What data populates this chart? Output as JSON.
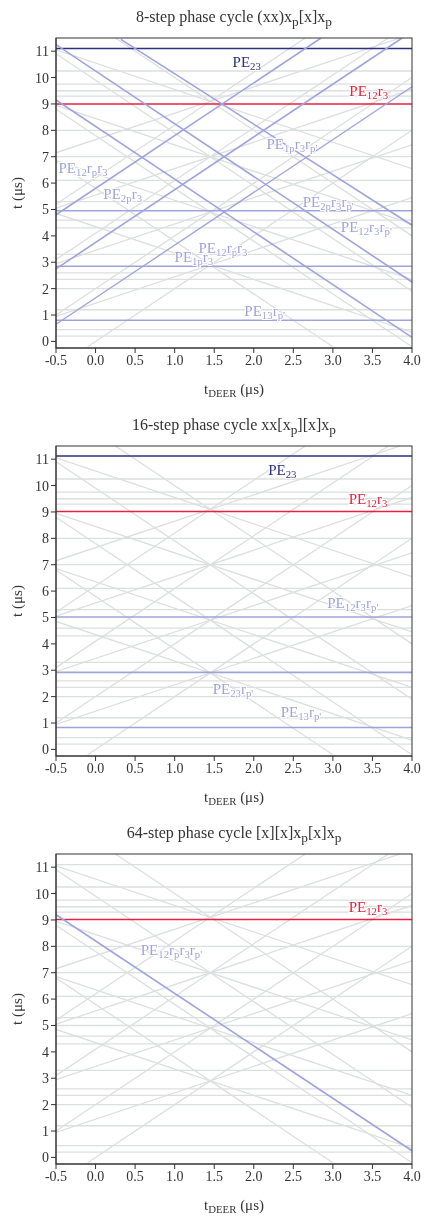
{
  "chart_data": [
    {
      "type": "line",
      "title": "8-step phase cycle (xx)x$_{p}$[x]x$_{p}$",
      "xlabel": "t$_{DEER}$ (μs)",
      "ylabel": "t (μs)",
      "xlim": [
        -0.5,
        4
      ],
      "ylim": [
        -0.25,
        11.5
      ],
      "xticks": [
        -0.5,
        {
          "value": 0,
          "label": "0.0"
        },
        0.5,
        {
          "value": 1,
          "label": "1.0"
        },
        1.5,
        {
          "value": 2,
          "label": "2.0"
        },
        2.5,
        {
          "value": 3,
          "label": "3.0"
        },
        3.5,
        {
          "value": 4,
          "label": "4.0"
        }
      ],
      "yticks": [
        0,
        1,
        2,
        3,
        4,
        5,
        6,
        7,
        8,
        9,
        10,
        11
      ],
      "series": [
        {
          "color": "#dcdfdf",
          "x": [
            -0.5,
            4
          ],
          "values": [
            0.2,
            0.2
          ]
        },
        {
          "color": "#dcdfdf",
          "x": [
            -0.5,
            4
          ],
          "values": [
            0.45,
            0.45
          ]
        },
        {
          "color": "#dcdfdf",
          "x": [
            -0.5,
            4
          ],
          "values": [
            1.2,
            1.2
          ]
        },
        {
          "color": "#dcdfdf",
          "x": [
            -0.5,
            4
          ],
          "values": [
            2.0,
            2.0
          ]
        },
        {
          "color": "#dcdfdf",
          "x": [
            -0.5,
            4
          ],
          "values": [
            2.35,
            2.35
          ]
        },
        {
          "color": "#dcdfdf",
          "x": [
            -0.5,
            4
          ],
          "values": [
            2.6,
            2.6
          ]
        },
        {
          "color": "#dcdfdf",
          "x": [
            -0.5,
            4
          ],
          "values": [
            3.3,
            3.3
          ]
        },
        {
          "color": "#dcdfdf",
          "x": [
            -0.5,
            4
          ],
          "values": [
            4.3,
            4.3
          ]
        },
        {
          "color": "#dcdfdf",
          "x": [
            -0.5,
            4
          ],
          "values": [
            4.6,
            4.6
          ]
        },
        {
          "color": "#dcdfdf",
          "x": [
            -0.5,
            4
          ],
          "values": [
            5.3,
            5.3
          ]
        },
        {
          "color": "#dcdfdf",
          "x": [
            -0.5,
            4
          ],
          "values": [
            6.1,
            6.1
          ]
        },
        {
          "color": "#dcdfdf",
          "x": [
            -0.5,
            4
          ],
          "values": [
            7.0,
            7.0
          ]
        },
        {
          "color": "#dcdfdf",
          "x": [
            -0.5,
            4
          ],
          "values": [
            8.0,
            8.0
          ]
        },
        {
          "color": "#dcdfdf",
          "x": [
            -0.5,
            4
          ],
          "values": [
            9.3,
            9.3
          ]
        },
        {
          "color": "#dcdfdf",
          "x": [
            -0.5,
            4
          ],
          "values": [
            9.5,
            9.5
          ]
        },
        {
          "color": "#dcdfdf",
          "x": [
            -0.5,
            4
          ],
          "values": [
            9.75,
            9.75
          ]
        },
        {
          "color": "#dcdfdf",
          "x": [
            -0.5,
            4
          ],
          "values": [
            10.25,
            10.25
          ]
        },
        {
          "color": "#dcdfdf",
          "x": [
            -0.5,
            3.85
          ],
          "values": [
            7.15,
            11.5
          ]
        },
        {
          "color": "#dcdfdf",
          "x": [
            -0.5,
            4
          ],
          "values": [
            11.05,
            6.55
          ]
        },
        {
          "color": "#dcdfdf",
          "x": [
            -0.5,
            4
          ],
          "values": [
            5.05,
            9.55
          ]
        },
        {
          "color": "#dcdfdf",
          "x": [
            -0.5,
            4
          ],
          "values": [
            8.95,
            4.45
          ]
        },
        {
          "color": "#dcdfdf",
          "x": [
            -0.5,
            4
          ],
          "values": [
            2.95,
            7.45
          ]
        },
        {
          "color": "#dcdfdf",
          "x": [
            -0.5,
            4
          ],
          "values": [
            6.85,
            2.35
          ]
        },
        {
          "color": "#dcdfdf",
          "x": [
            -0.5,
            4
          ],
          "values": [
            0.95,
            5.45
          ]
        },
        {
          "color": "#dcdfdf",
          "x": [
            -0.5,
            4
          ],
          "values": [
            4.85,
            0.35
          ]
        },
        {
          "color": "#dcdfdf",
          "x": [
            -0.5,
            2.65
          ],
          "values": [
            5.2,
            11.5
          ]
        },
        {
          "color": "#dcdfdf",
          "x": [
            0.25,
            4
          ],
          "values": [
            11.5,
            4.0
          ]
        },
        {
          "color": "#dcdfdf",
          "x": [
            -0.5,
            3.7
          ],
          "values": [
            3.1,
            11.5
          ]
        },
        {
          "color": "#dcdfdf",
          "x": [
            -0.5,
            4
          ],
          "values": [
            10.9,
            1.9
          ]
        },
        {
          "color": "#dcdfdf",
          "x": [
            -0.5,
            4
          ],
          "values": [
            1.0,
            10.0
          ]
        },
        {
          "color": "#dcdfdf",
          "x": [
            -0.5,
            4
          ],
          "values": [
            8.8,
            -0.2
          ]
        },
        {
          "color": "#dcdfdf",
          "x": [
            -0.1,
            4
          ],
          "values": [
            -0.2,
            8.0
          ]
        },
        {
          "color": "#dcdfdf",
          "x": [
            -0.5,
            3.0
          ],
          "values": [
            6.8,
            -0.2
          ]
        },
        {
          "name": "PE$_{23}$",
          "color": "#2e3180",
          "x": [
            -0.5,
            4
          ],
          "values": [
            11.1,
            11.1
          ]
        },
        {
          "name": "PE$_{12}$r$_{3}$",
          "color": "#e8213f",
          "x": [
            -0.5,
            4
          ],
          "values": [
            9.0,
            9.0
          ]
        },
        {
          "name": "PE$_{2p}$r$_{3}$r$_{p'}$",
          "color": "#9fa3dc",
          "x": [
            -0.5,
            4
          ],
          "values": [
            4.95,
            4.95
          ]
        },
        {
          "name": "PE$_{1p}$r$_{3}$",
          "color": "#9fa3dc",
          "x": [
            -0.5,
            4
          ],
          "values": [
            2.85,
            2.85
          ]
        },
        {
          "name": "PE$_{13}$r$_{p'}$",
          "color": "#9fa3dc",
          "x": [
            -0.5,
            4
          ],
          "values": [
            0.8,
            0.8
          ]
        },
        {
          "name": "PE$_{12}$r$_{3}$r$_{p'}$",
          "color": "#9fa3dc",
          "x": [
            -0.5,
            4
          ],
          "values": [
            11.25,
            2.25
          ]
        },
        {
          "name": "PE$_{12}$r$_{p}$r$_{3}$",
          "color": "#9fa3dc",
          "x": [
            -0.5,
            4
          ],
          "values": [
            9.15,
            0.15
          ]
        },
        {
          "name": "PE$_{12}$r$_{p}$r$_{3}$",
          "color": "#9fa3dc",
          "x": [
            -0.5,
            2.85
          ],
          "values": [
            4.8,
            11.5
          ]
        },
        {
          "name": "PE$_{2p}$r$_{3}$",
          "color": "#9fa3dc",
          "x": [
            -0.5,
            3.875
          ],
          "values": [
            2.75,
            11.5
          ]
        },
        {
          "color": "#9fa3dc",
          "x": [
            -0.5,
            4
          ],
          "values": [
            0.65,
            9.65
          ]
        },
        {
          "name": "PE$_{1p}$r$_{3}$r$_{p'}$",
          "color": "#9fa3dc",
          "x": [
            0.32,
            4
          ],
          "values": [
            11.45,
            4.4
          ]
        }
      ]
    },
    {
      "type": "line",
      "title": "16-step phase cycle xx[x$_{p}$][x]x$_{p}$",
      "xlabel": "t$_{DEER}$ (μs)",
      "ylabel": "t (μs)",
      "xlim": [
        -0.5,
        4
      ],
      "ylim": [
        -0.25,
        11.5
      ],
      "xticks": [
        -0.5,
        {
          "value": 0,
          "label": "0.0"
        },
        0.5,
        {
          "value": 1,
          "label": "1.0"
        },
        1.5,
        {
          "value": 2,
          "label": "2.0"
        },
        2.5,
        {
          "value": 3,
          "label": "3.0"
        },
        3.5,
        {
          "value": 4,
          "label": "4.0"
        }
      ],
      "yticks": [
        0,
        1,
        2,
        3,
        4,
        5,
        6,
        7,
        8,
        9,
        10,
        11
      ],
      "series": [
        {
          "color": "#dcdfdf",
          "x": [
            -0.5,
            4
          ],
          "values": [
            0.2,
            0.2
          ]
        },
        {
          "color": "#dcdfdf",
          "x": [
            -0.5,
            4
          ],
          "values": [
            0.45,
            0.45
          ]
        },
        {
          "color": "#dcdfdf",
          "x": [
            -0.5,
            4
          ],
          "values": [
            1.2,
            1.2
          ]
        },
        {
          "color": "#dcdfdf",
          "x": [
            -0.5,
            4
          ],
          "values": [
            2.0,
            2.0
          ]
        },
        {
          "color": "#dcdfdf",
          "x": [
            -0.5,
            4
          ],
          "values": [
            2.35,
            2.35
          ]
        },
        {
          "color": "#dcdfdf",
          "x": [
            -0.5,
            4
          ],
          "values": [
            2.6,
            2.6
          ]
        },
        {
          "color": "#dcdfdf",
          "x": [
            -0.5,
            4
          ],
          "values": [
            3.3,
            3.3
          ]
        },
        {
          "color": "#dcdfdf",
          "x": [
            -0.5,
            4
          ],
          "values": [
            4.3,
            4.3
          ]
        },
        {
          "color": "#dcdfdf",
          "x": [
            -0.5,
            4
          ],
          "values": [
            4.6,
            4.6
          ]
        },
        {
          "color": "#dcdfdf",
          "x": [
            -0.5,
            4
          ],
          "values": [
            5.3,
            5.3
          ]
        },
        {
          "color": "#dcdfdf",
          "x": [
            -0.5,
            4
          ],
          "values": [
            6.1,
            6.1
          ]
        },
        {
          "color": "#dcdfdf",
          "x": [
            -0.5,
            4
          ],
          "values": [
            7.0,
            7.0
          ]
        },
        {
          "color": "#dcdfdf",
          "x": [
            -0.5,
            4
          ],
          "values": [
            8.0,
            8.0
          ]
        },
        {
          "color": "#dcdfdf",
          "x": [
            -0.5,
            4
          ],
          "values": [
            9.3,
            9.3
          ]
        },
        {
          "color": "#dcdfdf",
          "x": [
            -0.5,
            4
          ],
          "values": [
            9.5,
            9.5
          ]
        },
        {
          "color": "#dcdfdf",
          "x": [
            -0.5,
            4
          ],
          "values": [
            9.75,
            9.75
          ]
        },
        {
          "color": "#dcdfdf",
          "x": [
            -0.5,
            4
          ],
          "values": [
            10.25,
            10.25
          ]
        },
        {
          "color": "#dcdfdf",
          "x": [
            -0.5,
            3.85
          ],
          "values": [
            7.15,
            11.5
          ]
        },
        {
          "color": "#dcdfdf",
          "x": [
            -0.5,
            4
          ],
          "values": [
            11.05,
            6.55
          ]
        },
        {
          "color": "#dcdfdf",
          "x": [
            -0.5,
            4
          ],
          "values": [
            5.05,
            9.55
          ]
        },
        {
          "color": "#dcdfdf",
          "x": [
            -0.5,
            4
          ],
          "values": [
            8.95,
            4.45
          ]
        },
        {
          "color": "#dcdfdf",
          "x": [
            -0.5,
            4
          ],
          "values": [
            2.95,
            7.45
          ]
        },
        {
          "color": "#dcdfdf",
          "x": [
            -0.5,
            4
          ],
          "values": [
            6.85,
            2.35
          ]
        },
        {
          "color": "#dcdfdf",
          "x": [
            -0.5,
            4
          ],
          "values": [
            0.95,
            5.45
          ]
        },
        {
          "color": "#dcdfdf",
          "x": [
            -0.5,
            4
          ],
          "values": [
            4.85,
            0.35
          ]
        },
        {
          "color": "#dcdfdf",
          "x": [
            -0.5,
            2.65
          ],
          "values": [
            5.2,
            11.5
          ]
        },
        {
          "color": "#dcdfdf",
          "x": [
            0.25,
            4
          ],
          "values": [
            11.5,
            4.0
          ]
        },
        {
          "color": "#dcdfdf",
          "x": [
            -0.5,
            3.7
          ],
          "values": [
            3.1,
            11.5
          ]
        },
        {
          "color": "#dcdfdf",
          "x": [
            -0.5,
            4
          ],
          "values": [
            10.9,
            1.9
          ]
        },
        {
          "color": "#dcdfdf",
          "x": [
            -0.5,
            4
          ],
          "values": [
            1.0,
            10.0
          ]
        },
        {
          "color": "#dcdfdf",
          "x": [
            -0.5,
            4
          ],
          "values": [
            8.8,
            -0.2
          ]
        },
        {
          "color": "#dcdfdf",
          "x": [
            -0.1,
            4
          ],
          "values": [
            -0.2,
            8.0
          ]
        },
        {
          "color": "#dcdfdf",
          "x": [
            -0.5,
            3.0
          ],
          "values": [
            6.8,
            -0.2
          ]
        },
        {
          "name": "PE$_{23}$",
          "color": "#2e3180",
          "x": [
            -0.5,
            4
          ],
          "values": [
            11.12,
            11.12
          ]
        },
        {
          "name": "PE$_{12}$r$_{3}$",
          "color": "#e8213f",
          "x": [
            -0.5,
            4
          ],
          "values": [
            9.02,
            9.02
          ]
        },
        {
          "name": "PE$_{12}$r$_{3}$r$_{p'}$",
          "color": "#9fa3dc",
          "x": [
            -0.5,
            4
          ],
          "values": [
            5.02,
            5.02
          ]
        },
        {
          "name": "PE$_{23}$r$_{p'}$",
          "color": "#9fa3dc",
          "x": [
            -0.5,
            4
          ],
          "values": [
            2.92,
            2.92
          ]
        },
        {
          "name": "PE$_{13}$r$_{p'}$",
          "color": "#9fa3dc",
          "x": [
            -0.5,
            4
          ],
          "values": [
            0.83,
            0.83
          ]
        }
      ]
    },
    {
      "type": "line",
      "title": "64-step phase cycle [x][x]x$_{p}$[x]x$_{p}$",
      "xlabel": "t$_{DEER}$ (μs)",
      "ylabel": "t (μs)",
      "xlim": [
        -0.5,
        4
      ],
      "ylim": [
        -0.25,
        11.5
      ],
      "xticks": [
        -0.5,
        {
          "value": 0,
          "label": "0.0"
        },
        0.5,
        {
          "value": 1,
          "label": "1.0"
        },
        1.5,
        {
          "value": 2,
          "label": "2.0"
        },
        2.5,
        {
          "value": 3,
          "label": "3.0"
        },
        3.5,
        {
          "value": 4,
          "label": "4.0"
        }
      ],
      "yticks": [
        0,
        1,
        2,
        3,
        4,
        5,
        6,
        7,
        8,
        9,
        10,
        11
      ],
      "series": [
        {
          "color": "#dcdfdf",
          "x": [
            -0.5,
            4
          ],
          "values": [
            0.2,
            0.2
          ]
        },
        {
          "color": "#dcdfdf",
          "x": [
            -0.5,
            4
          ],
          "values": [
            0.45,
            0.45
          ]
        },
        {
          "color": "#dcdfdf",
          "x": [
            -0.5,
            4
          ],
          "values": [
            1.2,
            1.2
          ]
        },
        {
          "color": "#dcdfdf",
          "x": [
            -0.5,
            4
          ],
          "values": [
            2.0,
            2.0
          ]
        },
        {
          "color": "#dcdfdf",
          "x": [
            -0.5,
            4
          ],
          "values": [
            2.35,
            2.35
          ]
        },
        {
          "color": "#dcdfdf",
          "x": [
            -0.5,
            4
          ],
          "values": [
            2.6,
            2.6
          ]
        },
        {
          "color": "#dcdfdf",
          "x": [
            -0.5,
            4
          ],
          "values": [
            3.3,
            3.3
          ]
        },
        {
          "color": "#dcdfdf",
          "x": [
            -0.5,
            4
          ],
          "values": [
            4.3,
            4.3
          ]
        },
        {
          "color": "#dcdfdf",
          "x": [
            -0.5,
            4
          ],
          "values": [
            4.6,
            4.6
          ]
        },
        {
          "color": "#dcdfdf",
          "x": [
            -0.5,
            4
          ],
          "values": [
            5.0,
            5.0
          ]
        },
        {
          "color": "#dcdfdf",
          "x": [
            -0.5,
            4
          ],
          "values": [
            5.3,
            5.3
          ]
        },
        {
          "color": "#dcdfdf",
          "x": [
            -0.5,
            4
          ],
          "values": [
            6.1,
            6.1
          ]
        },
        {
          "color": "#dcdfdf",
          "x": [
            -0.5,
            4
          ],
          "values": [
            7.0,
            7.0
          ]
        },
        {
          "color": "#dcdfdf",
          "x": [
            -0.5,
            4
          ],
          "values": [
            8.0,
            8.0
          ]
        },
        {
          "color": "#dcdfdf",
          "x": [
            -0.5,
            4
          ],
          "values": [
            9.3,
            9.3
          ]
        },
        {
          "color": "#dcdfdf",
          "x": [
            -0.5,
            4
          ],
          "values": [
            9.5,
            9.5
          ]
        },
        {
          "color": "#dcdfdf",
          "x": [
            -0.5,
            4
          ],
          "values": [
            9.75,
            9.75
          ]
        },
        {
          "color": "#dcdfdf",
          "x": [
            -0.5,
            4
          ],
          "values": [
            10.25,
            10.25
          ]
        },
        {
          "color": "#dcdfdf",
          "x": [
            -0.5,
            4
          ],
          "values": [
            11.1,
            11.1
          ]
        },
        {
          "color": "#dcdfdf",
          "x": [
            -0.5,
            3.85
          ],
          "values": [
            7.15,
            11.5
          ]
        },
        {
          "color": "#dcdfdf",
          "x": [
            -0.5,
            4
          ],
          "values": [
            11.05,
            6.55
          ]
        },
        {
          "color": "#dcdfdf",
          "x": [
            -0.5,
            4
          ],
          "values": [
            5.05,
            9.55
          ]
        },
        {
          "color": "#dcdfdf",
          "x": [
            -0.5,
            4
          ],
          "values": [
            8.95,
            4.45
          ]
        },
        {
          "color": "#dcdfdf",
          "x": [
            -0.5,
            4
          ],
          "values": [
            2.95,
            7.45
          ]
        },
        {
          "color": "#dcdfdf",
          "x": [
            -0.5,
            4
          ],
          "values": [
            6.85,
            2.35
          ]
        },
        {
          "color": "#dcdfdf",
          "x": [
            -0.5,
            4
          ],
          "values": [
            0.95,
            5.45
          ]
        },
        {
          "color": "#dcdfdf",
          "x": [
            -0.5,
            4
          ],
          "values": [
            4.85,
            0.35
          ]
        },
        {
          "color": "#dcdfdf",
          "x": [
            -0.5,
            2.65
          ],
          "values": [
            5.2,
            11.5
          ]
        },
        {
          "color": "#dcdfdf",
          "x": [
            0.25,
            4
          ],
          "values": [
            11.5,
            4.0
          ]
        },
        {
          "color": "#dcdfdf",
          "x": [
            -0.5,
            3.7
          ],
          "values": [
            3.1,
            11.5
          ]
        },
        {
          "color": "#dcdfdf",
          "x": [
            -0.5,
            4
          ],
          "values": [
            10.9,
            1.9
          ]
        },
        {
          "color": "#dcdfdf",
          "x": [
            -0.5,
            4
          ],
          "values": [
            1.0,
            10.0
          ]
        },
        {
          "color": "#dcdfdf",
          "x": [
            -0.5,
            4
          ],
          "values": [
            8.8,
            -0.2
          ]
        },
        {
          "color": "#dcdfdf",
          "x": [
            -0.1,
            4
          ],
          "values": [
            -0.2,
            8.0
          ]
        },
        {
          "color": "#dcdfdf",
          "x": [
            -0.5,
            3.0
          ],
          "values": [
            6.8,
            -0.2
          ]
        },
        {
          "name": "PE$_{12}$r$_{3}$",
          "color": "#e8213f",
          "x": [
            -0.5,
            4
          ],
          "values": [
            9.02,
            9.02
          ]
        },
        {
          "name": "PE$_{12}$r$_{p}$r$_{3}$r$_{p'}$",
          "color": "#9fa3dc",
          "x": [
            -0.5,
            4
          ],
          "values": [
            9.2,
            0.25
          ]
        }
      ]
    }
  ]
}
